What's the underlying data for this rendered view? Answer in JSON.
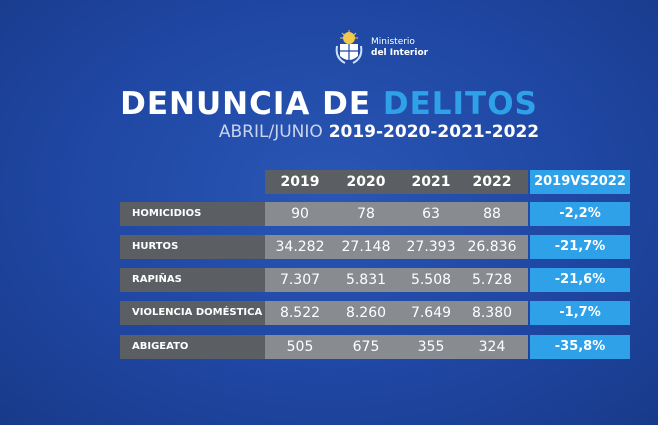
{
  "logo": {
    "line1": "Ministerio",
    "line2": "del Interior"
  },
  "title": {
    "part1": "DENUNCIA DE",
    "part2": "DELITOS"
  },
  "subtitle": {
    "part1": "ABRIL/JUNIO",
    "part2": "2019-2020-2021-2022"
  },
  "colors": {
    "background": "#1f47a3",
    "accent": "#2ea1e8",
    "label_bg": "#5b5e63",
    "value_bg": "#888b90"
  },
  "chart_data": {
    "type": "table",
    "title": "DENUNCIA DE DELITOS",
    "subtitle": "ABRIL/JUNIO 2019-2020-2021-2022",
    "columns": [
      "2019",
      "2020",
      "2021",
      "2022"
    ],
    "comparison_header": "2019VS2022",
    "rows": [
      {
        "label": "HOMICIDIOS",
        "values": [
          "90",
          "78",
          "63",
          "88"
        ],
        "change": "-2,2%"
      },
      {
        "label": "HURTOS",
        "values": [
          "34.282",
          "27.148",
          "27.393",
          "26.836"
        ],
        "change": "-21,7%"
      },
      {
        "label": "RAPIÑAS",
        "values": [
          "7.307",
          "5.831",
          "5.508",
          "5.728"
        ],
        "change": "-21,6%"
      },
      {
        "label": "VIOLENCIA DOMÉSTICA",
        "values": [
          "8.522",
          "8.260",
          "7.649",
          "8.380"
        ],
        "change": "-1,7%"
      },
      {
        "label": "ABIGEATO",
        "values": [
          "505",
          "675",
          "355",
          "324"
        ],
        "change": "-35,8%"
      }
    ]
  }
}
